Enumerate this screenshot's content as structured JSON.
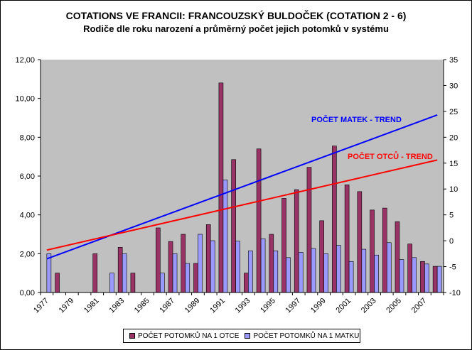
{
  "chart_data": {
    "type": "bar",
    "title": "COTATIONS VE FRANCII: FRANCOUZSKÝ  BULDOČEK  (COTATION  2 - 6)",
    "subtitle": "Rodiče dle roku narození a průměrný počet jejich potomků  v systému",
    "categories": [
      "1977",
      "1978",
      "1979",
      "1980",
      "1981",
      "1982",
      "1983",
      "1984",
      "1985",
      "1986",
      "1987",
      "1988",
      "1989",
      "1990",
      "1991",
      "1992",
      "1993",
      "1994",
      "1995",
      "1996",
      "1997",
      "1998",
      "1999",
      "2000",
      "2001",
      "2002",
      "2003",
      "2004",
      "2005",
      "2006",
      "2007",
      "2008"
    ],
    "x_tick_labels": [
      "1977",
      "1979",
      "1981",
      "1983",
      "1985",
      "1987",
      "1989",
      "1991",
      "1993",
      "1995",
      "1997",
      "1999",
      "2001",
      "2003",
      "2005",
      "2007"
    ],
    "series": [
      {
        "name": "POČET POTOMKŮ NA 1 OTCE",
        "color": "#993366",
        "values": [
          0,
          1,
          0,
          0,
          2,
          0,
          2.33,
          1,
          0,
          3.33,
          2.63,
          3,
          1.5,
          3.5,
          10.8,
          6.85,
          1,
          7.4,
          3,
          4.85,
          5.3,
          6.45,
          3.7,
          7.55,
          5.55,
          5.2,
          4.25,
          4.35,
          3.65,
          2.5,
          1.6,
          1.35
        ]
      },
      {
        "name": "POČET POTOMKŮ NA 1 MATKU",
        "color": "#9999ff",
        "values": [
          2,
          0,
          0,
          0,
          0,
          1,
          2,
          0,
          0,
          1,
          2,
          1.5,
          3,
          2.67,
          5.8,
          2.65,
          2.15,
          2.77,
          2.15,
          1.8,
          2.07,
          2.27,
          2,
          2.43,
          1.6,
          2.23,
          1.93,
          2.57,
          1.7,
          1.8,
          1.47,
          1.35
        ]
      }
    ],
    "ylim": [
      0,
      12
    ],
    "y_tick_labels": [
      "0,00",
      "2,00",
      "4,00",
      "6,00",
      "8,00",
      "10,00",
      "12,00"
    ],
    "y2lim": [
      -10,
      35
    ],
    "y2_tick_labels": [
      "-10",
      "-5",
      "0",
      "5",
      "10",
      "15",
      "20",
      "25",
      "30",
      "35"
    ],
    "trendlines": [
      {
        "label": "POČET MATEK - TREND",
        "color": "#0000ff",
        "start": -3.5,
        "end": 24.3
      },
      {
        "label": "POČET OTCŮ - TREND",
        "color": "#ff0000",
        "start": -1.8,
        "end": 15.6
      }
    ],
    "plot_background": "#c0c0c0",
    "grid": false,
    "legend": "bottom"
  }
}
